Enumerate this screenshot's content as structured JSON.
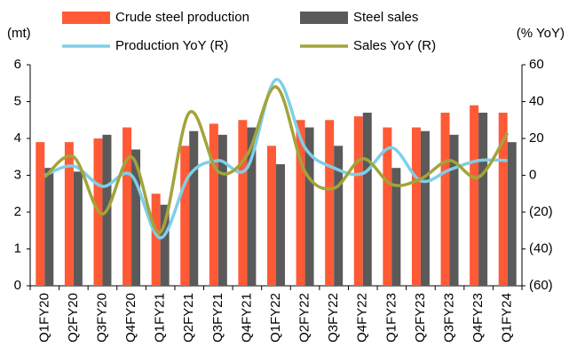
{
  "chart_data": {
    "type": "bar",
    "categories": [
      "Q1FY20",
      "Q2FY20",
      "Q3FY20",
      "Q4FY20",
      "Q1FY21",
      "Q2FY21",
      "Q3FY21",
      "Q4FY21",
      "Q1FY22",
      "Q2FY22",
      "Q3FY22",
      "Q4FY22",
      "Q1FY23",
      "Q2FY23",
      "Q3FY23",
      "Q4FY23",
      "Q1FY24"
    ],
    "series": [
      {
        "name": "Crude steel production",
        "type": "bar",
        "color": "#ff5a36",
        "values": [
          3.9,
          3.9,
          4.0,
          4.3,
          2.5,
          3.8,
          4.4,
          4.5,
          3.8,
          4.5,
          4.5,
          4.6,
          4.3,
          4.3,
          4.7,
          4.9,
          4.7
        ]
      },
      {
        "name": "Steel sales",
        "type": "bar",
        "color": "#5a5a5a",
        "values": [
          3.2,
          3.1,
          4.1,
          3.7,
          2.2,
          4.2,
          4.1,
          4.3,
          3.3,
          4.3,
          3.8,
          4.7,
          3.2,
          4.2,
          4.1,
          4.7,
          3.9
        ]
      },
      {
        "name": "Production YoY (R)",
        "type": "line",
        "axis": "y2",
        "color": "#7ecfe8",
        "values": [
          0,
          5,
          -6,
          0,
          -34,
          0,
          8,
          4,
          52,
          15,
          4,
          1,
          15,
          -3,
          3,
          8,
          8
        ]
      },
      {
        "name": "Sales YoY (R)",
        "type": "line",
        "axis": "y2",
        "color": "#a4a33a",
        "values": [
          -1,
          10,
          -21,
          10,
          -31,
          34,
          2,
          11,
          48,
          2,
          -7,
          9,
          -5,
          -2,
          8,
          -1,
          23
        ]
      }
    ],
    "ylabel": "(mt)",
    "y2label": "(% YoY)",
    "ylim": [
      0,
      6
    ],
    "yticks": [
      0,
      1,
      2,
      3,
      4,
      5,
      6
    ],
    "y2lim": [
      -60,
      60
    ],
    "y2ticks": [
      {
        "value": -60,
        "label": "(60)"
      },
      {
        "value": -40,
        "label": "(40)"
      },
      {
        "value": -20,
        "label": "(20)"
      },
      0,
      20,
      40,
      60
    ]
  }
}
